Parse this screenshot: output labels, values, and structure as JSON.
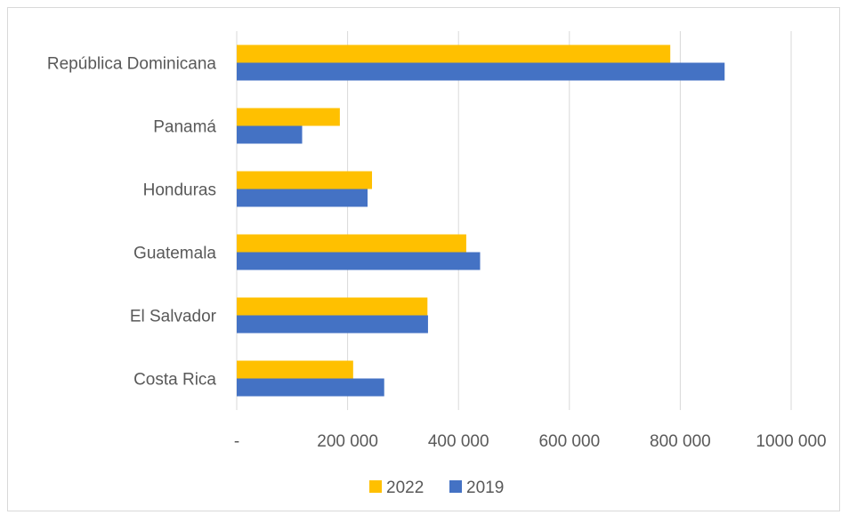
{
  "chart_data": {
    "type": "bar",
    "orientation": "horizontal",
    "categories": [
      "Costa Rica",
      "El Salvador",
      "Guatemala",
      "Honduras",
      "Panamá",
      "República Dominicana"
    ],
    "series": [
      {
        "name": "2022",
        "color": "#ffc000",
        "values": [
          210000,
          344000,
          414000,
          244000,
          186000,
          782000
        ]
      },
      {
        "name": "2019",
        "color": "#4472c4",
        "values": [
          266000,
          345000,
          439000,
          236000,
          118000,
          880000
        ]
      }
    ],
    "x_ticks": [
      {
        "value": 0,
        "label": "-"
      },
      {
        "value": 200000,
        "label": "200 000"
      },
      {
        "value": 400000,
        "label": "400 000"
      },
      {
        "value": 600000,
        "label": "600 000"
      },
      {
        "value": 800000,
        "label": "800 000"
      },
      {
        "value": 1000000,
        "label": "1000 000"
      }
    ],
    "xlim": [
      0,
      1000000
    ],
    "grid": "vertical",
    "legend_position": "bottom",
    "title": "",
    "xlabel": "",
    "ylabel": ""
  }
}
